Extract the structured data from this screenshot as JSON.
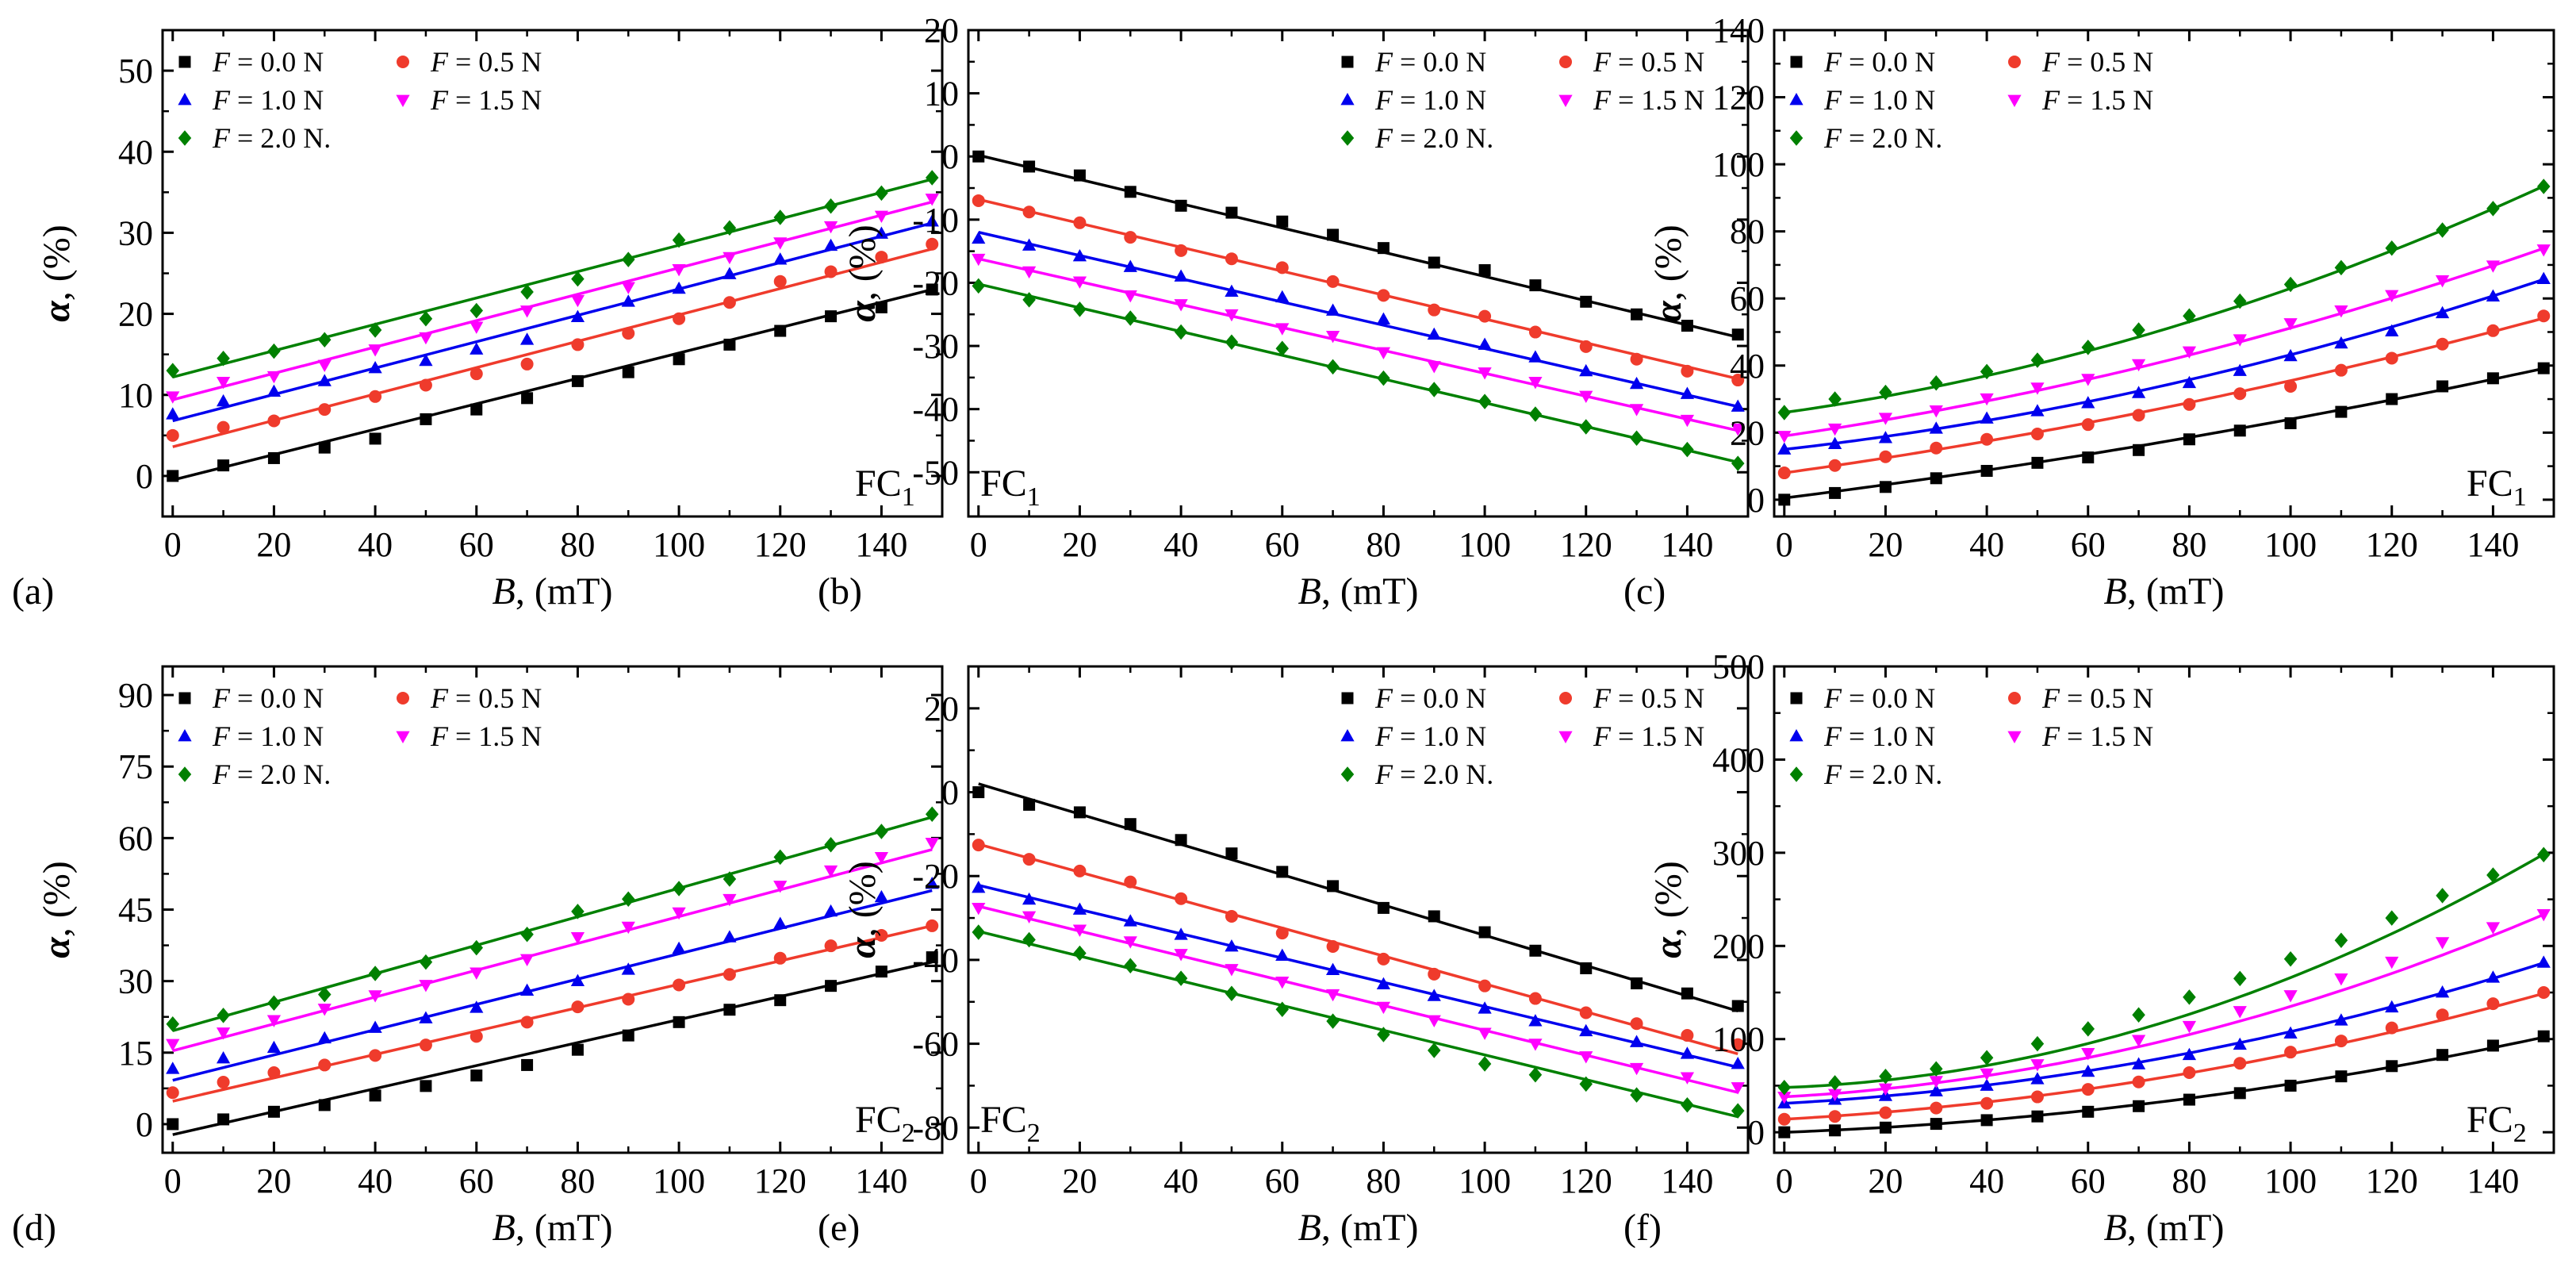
{
  "figure": {
    "panels_meta": [
      "(a)",
      "(b)",
      "(c)",
      "(d)",
      "(e)",
      "(f)"
    ]
  },
  "series_styles": [
    {
      "name": "F = 0.0 N",
      "color": "#000000",
      "marker": "square"
    },
    {
      "name": "F = 0.5 N",
      "color": "#ef3b2c",
      "marker": "circle"
    },
    {
      "name": "F = 1.0 N",
      "color": "#0000ee",
      "marker": "triangle-up"
    },
    {
      "name": "F = 1.5 N",
      "color": "#ff00ff",
      "marker": "triangle-down"
    },
    {
      "name": "F = 2.0 N.",
      "color": "#008000",
      "marker": "diamond"
    }
  ],
  "chart_data": [
    {
      "type": "scatter",
      "panel_label": "(a)",
      "corner_label": {
        "main": "FC",
        "sub": "1"
      },
      "corner_position": "bottom-right",
      "legend_position": "top-left",
      "xlabel": {
        "italic": "B",
        "rest": ", (mT)"
      },
      "ylabel": {
        "italic": "α",
        "rest": ", (%)"
      },
      "xlim": [
        -2,
        152
      ],
      "ylim": [
        -5,
        55
      ],
      "xticks": [
        "0",
        "20",
        "40",
        "60",
        "80",
        "100",
        "120",
        "140"
      ],
      "yticks": [
        "0",
        "10",
        "20",
        "30",
        "40",
        "50"
      ],
      "x": [
        0,
        10,
        20,
        30,
        40,
        50,
        60,
        70,
        80,
        90,
        100,
        110,
        120,
        130,
        140,
        150
      ],
      "series": [
        {
          "name": "F = 0.0 N",
          "values": [
            0,
            1.3,
            2.2,
            3.5,
            4.6,
            7.0,
            8.2,
            9.6,
            11.7,
            12.8,
            14.4,
            16.2,
            17.9,
            19.7,
            20.8,
            23.0
          ],
          "fit": [
            -0.5,
            23.0
          ]
        },
        {
          "name": "F = 0.5 N",
          "values": [
            5.0,
            6.0,
            6.8,
            8.2,
            9.8,
            11.2,
            12.6,
            13.8,
            16.2,
            17.6,
            19.4,
            21.4,
            24.0,
            25.2,
            27.0,
            28.6
          ],
          "fit": [
            3.6,
            28.0
          ]
        },
        {
          "name": "F = 1.0 N",
          "values": [
            7.6,
            9.2,
            10.4,
            11.7,
            13.3,
            14.2,
            15.6,
            16.8,
            19.6,
            21.5,
            23.1,
            24.9,
            26.7,
            28.4,
            29.9,
            31.4
          ],
          "fit": [
            6.8,
            31.2
          ]
        },
        {
          "name": "F = 1.5 N",
          "values": [
            9.8,
            11.6,
            12.3,
            13.7,
            15.6,
            17.1,
            18.4,
            20.4,
            21.7,
            23.3,
            25.5,
            27.0,
            28.8,
            30.8,
            32.1,
            34.2
          ],
          "fit": [
            9.4,
            33.8
          ]
        },
        {
          "name": "F = 2.0 N.",
          "values": [
            13.0,
            14.5,
            15.4,
            16.8,
            18.0,
            19.4,
            20.4,
            22.7,
            24.3,
            26.7,
            29.1,
            30.6,
            31.9,
            33.3,
            34.9,
            36.8
          ],
          "fit": [
            12.2,
            36.6
          ]
        }
      ]
    },
    {
      "type": "scatter",
      "panel_label": "(b)",
      "corner_label": {
        "main": "FC",
        "sub": "1"
      },
      "corner_position": "bottom-left",
      "legend_position": "top-right",
      "xlabel": {
        "italic": "B",
        "rest": ", (mT)"
      },
      "ylabel": {
        "italic": "α",
        "rest": ", (%)"
      },
      "xlim": [
        -2,
        152
      ],
      "ylim": [
        -57,
        20
      ],
      "xticks": [
        "0",
        "20",
        "40",
        "60",
        "80",
        "100",
        "120",
        "140"
      ],
      "yticks": [
        "-50",
        "-40",
        "-30",
        "-20",
        "-10",
        "0",
        "10",
        "20"
      ],
      "x": [
        0,
        10,
        20,
        30,
        40,
        50,
        60,
        70,
        80,
        90,
        100,
        110,
        120,
        130,
        140,
        150
      ],
      "series": [
        {
          "name": "F = 0.0 N",
          "values": [
            0,
            -1.6,
            -3.0,
            -5.6,
            -7.8,
            -8.9,
            -10.3,
            -12.4,
            -14.5,
            -16.8,
            -18.0,
            -20.4,
            -23.0,
            -25.0,
            -26.8,
            -28.2
          ],
          "fit": [
            0.2,
            -28.6
          ]
        },
        {
          "name": "F = 0.5 N",
          "values": [
            -7.0,
            -8.8,
            -10.5,
            -12.8,
            -14.9,
            -16.2,
            -17.6,
            -19.8,
            -22.0,
            -24.3,
            -25.3,
            -27.8,
            -30.1,
            -32.1,
            -34.0,
            -35.4
          ],
          "fit": [
            -6.8,
            -35.2
          ]
        },
        {
          "name": "F = 1.0 N",
          "values": [
            -13.0,
            -14.1,
            -15.8,
            -17.5,
            -19.0,
            -21.4,
            -22.3,
            -24.4,
            -25.8,
            -28.2,
            -29.8,
            -31.8,
            -34.0,
            -36.0,
            -37.6,
            -39.6
          ],
          "fit": [
            -12.0,
            -39.6
          ]
        },
        {
          "name": "F = 1.5 N",
          "values": [
            -16.2,
            -18.2,
            -19.8,
            -22.0,
            -23.4,
            -25.0,
            -27.2,
            -28.4,
            -31.0,
            -33.2,
            -34.2,
            -35.7,
            -37.9,
            -40.0,
            -41.7,
            -43.1
          ],
          "fit": [
            -16.2,
            -43.4
          ]
        },
        {
          "name": "F = 2.0 N.",
          "values": [
            -20.5,
            -22.7,
            -24.2,
            -25.6,
            -27.8,
            -29.4,
            -30.4,
            -33.3,
            -35.1,
            -36.9,
            -38.8,
            -40.8,
            -42.8,
            -44.6,
            -46.4,
            -48.6
          ],
          "fit": [
            -20.2,
            -48.4
          ]
        }
      ]
    },
    {
      "type": "scatter",
      "panel_label": "(c)",
      "corner_label": {
        "main": "FC",
        "sub": "1"
      },
      "corner_position": "bottom-right",
      "legend_position": "top-left",
      "xlabel": {
        "italic": "B",
        "rest": ", (mT)"
      },
      "ylabel": {
        "italic": "α",
        "rest": ", (%)"
      },
      "xlim": [
        -2,
        152
      ],
      "ylim": [
        -5,
        140
      ],
      "xticks": [
        "0",
        "20",
        "40",
        "60",
        "80",
        "100",
        "120",
        "140"
      ],
      "yticks": [
        "0",
        "20",
        "40",
        "60",
        "80",
        "100",
        "120",
        "140"
      ],
      "x": [
        0,
        10,
        20,
        30,
        40,
        50,
        60,
        70,
        80,
        90,
        100,
        110,
        120,
        130,
        140,
        150
      ],
      "series": [
        {
          "name": "F = 0.0 N",
          "values": [
            0,
            2.0,
            3.8,
            6.4,
            8.6,
            11.0,
            12.6,
            14.8,
            18.0,
            20.6,
            22.8,
            26.2,
            30.0,
            33.8,
            36.2,
            39.2
          ],
          "fit": [
            0.5,
            0.19,
            0.00045
          ]
        },
        {
          "name": "F = 0.5 N",
          "values": [
            8.0,
            10.2,
            12.8,
            15.4,
            18.0,
            19.6,
            22.4,
            25.2,
            28.4,
            31.6,
            33.8,
            38.6,
            42.2,
            46.4,
            50.4,
            54.8
          ],
          "fit": [
            8.0,
            0.21,
            0.00065
          ]
        },
        {
          "name": "F = 1.0 N",
          "values": [
            15.0,
            16.6,
            18.4,
            21.2,
            24.2,
            26.4,
            28.8,
            31.8,
            34.8,
            38.4,
            42.8,
            46.6,
            50.2,
            55.6,
            60.6,
            65.8
          ],
          "fit": [
            15.0,
            0.17,
            0.00112
          ]
        },
        {
          "name": "F = 1.5 N",
          "values": [
            19.0,
            21.2,
            24.4,
            26.6,
            30.2,
            33.4,
            36.0,
            40.4,
            44.2,
            47.8,
            52.6,
            56.4,
            61.0,
            65.4,
            69.8,
            74.6
          ],
          "fit": [
            19.0,
            0.22,
            0.00102
          ]
        },
        {
          "name": "F = 2.0 N.",
          "values": [
            26.0,
            30.0,
            32.0,
            34.8,
            38.2,
            41.6,
            45.4,
            50.6,
            54.8,
            59.2,
            64.2,
            69.2,
            75.0,
            80.4,
            86.8,
            93.4
          ],
          "fit": [
            26.0,
            0.21,
            0.0016
          ]
        }
      ]
    },
    {
      "type": "scatter",
      "panel_label": "(d)",
      "corner_label": {
        "main": "FC",
        "sub": "2"
      },
      "corner_position": "bottom-right",
      "legend_position": "top-left",
      "xlabel": {
        "italic": "B",
        "rest": ", (mT)"
      },
      "ylabel": {
        "italic": "α",
        "rest": ", (%)"
      },
      "xlim": [
        -2,
        152
      ],
      "ylim": [
        -6,
        96
      ],
      "xticks": [
        "0",
        "20",
        "40",
        "60",
        "80",
        "100",
        "120",
        "140"
      ],
      "yticks": [
        "0",
        "15",
        "30",
        "45",
        "60",
        "75",
        "90"
      ],
      "x": [
        0,
        10,
        20,
        30,
        40,
        50,
        60,
        70,
        80,
        90,
        100,
        110,
        120,
        130,
        140,
        150
      ],
      "series": [
        {
          "name": "F = 0.0 N",
          "values": [
            0,
            1.0,
            2.6,
            4.0,
            6.0,
            8.0,
            10.2,
            12.4,
            15.6,
            18.6,
            21.4,
            24.0,
            26.0,
            29.0,
            32.0,
            35.0
          ],
          "fit": [
            -2.2,
            34.0
          ]
        },
        {
          "name": "F = 0.5 N",
          "values": [
            6.6,
            8.8,
            10.8,
            12.4,
            14.4,
            16.6,
            18.4,
            21.4,
            24.6,
            26.2,
            29.2,
            31.4,
            34.8,
            37.4,
            39.6,
            41.6
          ],
          "fit": [
            4.8,
            41.6
          ]
        },
        {
          "name": "F = 1.0 N",
          "values": [
            11.6,
            13.8,
            16.0,
            18.0,
            20.2,
            22.2,
            24.4,
            28.0,
            30.0,
            32.4,
            36.8,
            39.2,
            42.0,
            44.6,
            47.6,
            50.4
          ],
          "fit": [
            9.2,
            49.0
          ]
        },
        {
          "name": "F = 1.5 N",
          "values": [
            16.8,
            19.2,
            21.8,
            24.2,
            27.0,
            29.2,
            31.8,
            34.6,
            39.2,
            41.4,
            44.4,
            47.2,
            50.0,
            53.2,
            56.0,
            59.0
          ],
          "fit": [
            15.4,
            57.6
          ]
        },
        {
          "name": "F = 2.0 N.",
          "values": [
            21.0,
            22.8,
            25.4,
            27.2,
            31.6,
            34.0,
            37.0,
            39.8,
            44.6,
            47.2,
            49.4,
            51.4,
            56.0,
            58.6,
            61.4,
            65.0
          ],
          "fit": [
            19.6,
            64.4
          ]
        }
      ]
    },
    {
      "type": "scatter",
      "panel_label": "(e)",
      "corner_label": {
        "main": "FC",
        "sub": "2"
      },
      "corner_position": "bottom-left",
      "legend_position": "top-right",
      "xlabel": {
        "italic": "B",
        "rest": ", (mT)"
      },
      "ylabel": {
        "italic": "α",
        "rest": ", (%)"
      },
      "xlim": [
        -2,
        152
      ],
      "ylim": [
        -86,
        30
      ],
      "xticks": [
        "0",
        "20",
        "40",
        "60",
        "80",
        "100",
        "120",
        "140"
      ],
      "yticks": [
        "-80",
        "-60",
        "-40",
        "-20",
        "0",
        "20"
      ],
      "x": [
        0,
        10,
        20,
        30,
        40,
        50,
        60,
        70,
        80,
        90,
        100,
        110,
        120,
        130,
        140,
        150
      ],
      "series": [
        {
          "name": "F = 0.0 N",
          "values": [
            0,
            -3.0,
            -4.8,
            -7.6,
            -11.4,
            -14.6,
            -19.0,
            -22.4,
            -27.6,
            -29.6,
            -33.4,
            -37.8,
            -42.0,
            -45.6,
            -48.0,
            -51.0
          ],
          "fit": [
            2.0,
            -52.2
          ]
        },
        {
          "name": "F = 0.5 N",
          "values": [
            -12.6,
            -16.0,
            -18.8,
            -21.4,
            -25.4,
            -29.6,
            -33.6,
            -36.8,
            -39.8,
            -43.4,
            -46.2,
            -49.2,
            -52.6,
            -55.2,
            -58.0,
            -60.2
          ],
          "fit": [
            -12.4,
            -62.4
          ]
        },
        {
          "name": "F = 1.0 N",
          "values": [
            -22.8,
            -25.6,
            -28.0,
            -30.8,
            -34.0,
            -36.8,
            -39.0,
            -42.4,
            -45.8,
            -48.6,
            -51.6,
            -54.6,
            -57.0,
            -59.6,
            -62.4,
            -64.8
          ],
          "fit": [
            -22.2,
            -65.6
          ]
        },
        {
          "name": "F = 1.5 N",
          "values": [
            -27.6,
            -29.6,
            -32.8,
            -35.6,
            -38.6,
            -42.2,
            -45.2,
            -48.2,
            -51.2,
            -54.4,
            -57.4,
            -60.0,
            -63.0,
            -65.8,
            -68.0,
            -70.4
          ],
          "fit": [
            -27.2,
            -71.6
          ]
        },
        {
          "name": "F = 2.0 N.",
          "values": [
            -33.4,
            -35.2,
            -38.4,
            -41.4,
            -44.4,
            -48.0,
            -51.8,
            -54.6,
            -57.8,
            -61.6,
            -64.8,
            -67.4,
            -69.6,
            -72.2,
            -74.6,
            -76.0
          ],
          "fit": [
            -33.2,
            -77.4
          ]
        }
      ]
    },
    {
      "type": "scatter",
      "panel_label": "(f)",
      "corner_label": {
        "main": "FC",
        "sub": "2"
      },
      "corner_position": "bottom-right",
      "legend_position": "top-left",
      "xlabel": {
        "italic": "B",
        "rest": ", (mT)"
      },
      "ylabel": {
        "italic": "α",
        "rest": ", (%)"
      },
      "xlim": [
        -2,
        152
      ],
      "ylim": [
        -22,
        500
      ],
      "xticks": [
        "0",
        "20",
        "40",
        "60",
        "80",
        "100",
        "120",
        "140"
      ],
      "yticks": [
        "0",
        "100",
        "200",
        "300",
        "400",
        "500"
      ],
      "x": [
        0,
        10,
        20,
        30,
        40,
        50,
        60,
        70,
        80,
        90,
        100,
        110,
        120,
        130,
        140,
        150
      ],
      "series": [
        {
          "name": "F = 0.0 N",
          "values": [
            0,
            2,
            5,
            9,
            13,
            17,
            22,
            28,
            35,
            42,
            50,
            60,
            71,
            83,
            93,
            103
          ],
          "fit": [
            0,
            0.2,
            0.0032
          ]
        },
        {
          "name": "F = 0.5 N",
          "values": [
            14,
            17,
            21,
            26,
            31,
            38,
            46,
            54,
            64,
            74,
            86,
            98,
            112,
            126,
            138,
            150
          ],
          "fit": [
            14,
            0.3,
            0.004
          ]
        },
        {
          "name": "F = 1.0 N",
          "values": [
            31,
            35,
            39,
            44,
            50,
            57,
            65,
            73,
            83,
            94,
            106,
            120,
            134,
            150,
            166,
            182
          ],
          "fit": [
            31,
            0.3,
            0.0047
          ]
        },
        {
          "name": "F = 1.5 N",
          "values": [
            38,
            41,
            47,
            55,
            63,
            73,
            85,
            99,
            114,
            130,
            147,
            165,
            183,
            204,
            220,
            234
          ],
          "fit": [
            38,
            0.3,
            0.0067
          ]
        },
        {
          "name": "F = 2.0 N.",
          "values": [
            48,
            53,
            60,
            68,
            80,
            95,
            111,
            126,
            145,
            165,
            186,
            206,
            230,
            254,
            276,
            298
          ],
          "fit": [
            48,
            0.2,
            0.0098
          ]
        }
      ]
    }
  ]
}
